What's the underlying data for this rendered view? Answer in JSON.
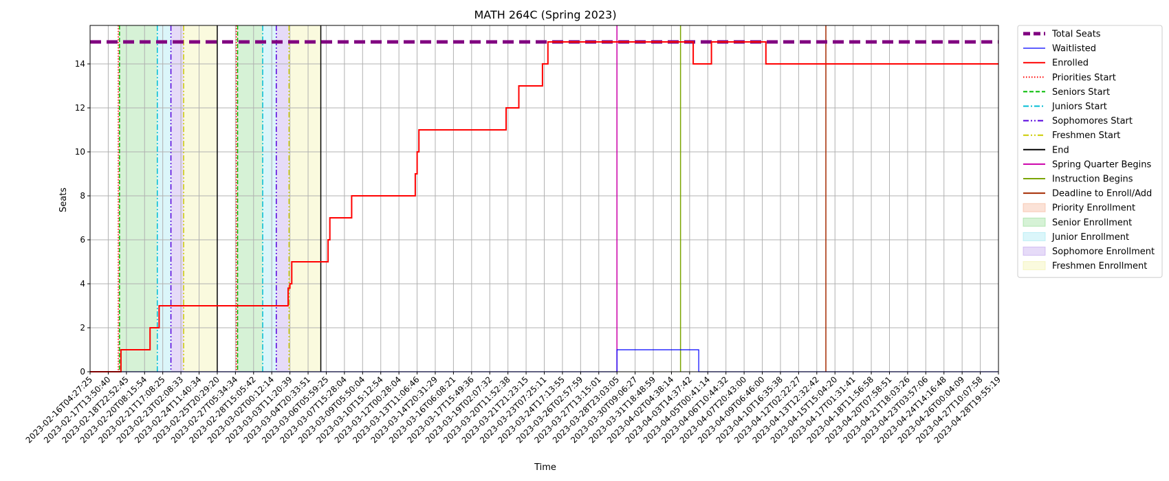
{
  "chart_data": {
    "type": "line",
    "title": "MATH 264C (Spring 2023)",
    "xlabel": "Time",
    "ylabel": "Seats",
    "xlim": [
      "2023-02-16T04:27:25",
      "2023-04-28T19:55:19"
    ],
    "ylim": [
      0,
      15.75
    ],
    "yticks": [
      0,
      2,
      4,
      6,
      8,
      10,
      12,
      14
    ],
    "xticks": [
      "2023-02-16T04:27:25",
      "2023-02-17T13:50:40",
      "2023-02-18T22:52:45",
      "2023-02-20T08:15:54",
      "2023-02-21T17:08:25",
      "2023-02-23T02:08:33",
      "2023-02-24T11:40:34",
      "2023-02-25T20:29:20",
      "2023-02-27T05:34:34",
      "2023-02-28T15:05:42",
      "2023-03-02T00:12:14",
      "2023-03-03T11:20:39",
      "2023-03-04T20:33:51",
      "2023-03-06T05:59:25",
      "2023-03-07T15:28:04",
      "2023-03-09T05:50:04",
      "2023-03-10T15:12:54",
      "2023-03-12T00:28:04",
      "2023-03-13T11:06:46",
      "2023-03-14T20:31:29",
      "2023-03-16T06:08:21",
      "2023-03-17T15:49:36",
      "2023-03-19T02:07:32",
      "2023-03-20T11:52:38",
      "2023-03-21T21:23:15",
      "2023-03-23T07:25:11",
      "2023-03-24T17:13:55",
      "2023-03-26T02:57:59",
      "2023-03-27T13:15:01",
      "2023-03-28T23:03:05",
      "2023-03-30T09:06:27",
      "2023-03-31T18:48:59",
      "2023-04-02T04:38:14",
      "2023-04-03T14:37:42",
      "2023-04-05T00:41:14",
      "2023-04-06T10:44:32",
      "2023-04-07T20:43:00",
      "2023-04-09T06:46:00",
      "2023-04-10T16:35:38",
      "2023-04-12T02:22:27",
      "2023-04-13T12:32:42",
      "2023-04-15T15:04:20",
      "2023-04-17T01:31:41",
      "2023-04-18T11:56:58",
      "2023-04-20T07:58:51",
      "2023-04-21T18:03:26",
      "2023-04-23T03:57:06",
      "2023-04-24T14:16:48",
      "2023-04-26T00:04:09",
      "2023-04-27T10:07:58",
      "2023-04-28T19:55:19"
    ],
    "grid": true,
    "legend_position": "outside-right",
    "series": [
      {
        "name": "Total Seats",
        "color": "#800080",
        "style": "dashed-thick",
        "points": [
          [
            0,
            15
          ],
          [
            50,
            15
          ]
        ]
      },
      {
        "name": "Waitlisted",
        "color": "#0000ff",
        "style": "solid-thin",
        "points": [
          [
            0,
            0
          ],
          [
            29,
            0
          ],
          [
            29,
            1
          ],
          [
            33.5,
            1
          ],
          [
            33.5,
            0
          ],
          [
            50,
            0
          ]
        ]
      },
      {
        "name": "Enrolled",
        "color": "#ff0000",
        "style": "solid",
        "points": [
          [
            0,
            0
          ],
          [
            1.7,
            0
          ],
          [
            1.7,
            1
          ],
          [
            3.3,
            1
          ],
          [
            3.3,
            2
          ],
          [
            3.8,
            2
          ],
          [
            3.8,
            3
          ],
          [
            10.9,
            3
          ],
          [
            10.9,
            3.8
          ],
          [
            11.0,
            3.8
          ],
          [
            11.0,
            4
          ],
          [
            11.1,
            4
          ],
          [
            11.1,
            5
          ],
          [
            13.1,
            5
          ],
          [
            13.1,
            6
          ],
          [
            13.2,
            6
          ],
          [
            13.2,
            7
          ],
          [
            14.4,
            7
          ],
          [
            14.4,
            8
          ],
          [
            17.9,
            8
          ],
          [
            17.9,
            9
          ],
          [
            18.0,
            9
          ],
          [
            18.0,
            10
          ],
          [
            18.1,
            10
          ],
          [
            18.1,
            11
          ],
          [
            22.9,
            11
          ],
          [
            22.9,
            12
          ],
          [
            23.6,
            12
          ],
          [
            23.6,
            13
          ],
          [
            24.9,
            13
          ],
          [
            24.9,
            14
          ],
          [
            25.2,
            14
          ],
          [
            25.2,
            15
          ],
          [
            33.2,
            15
          ],
          [
            33.2,
            14
          ],
          [
            34.2,
            14
          ],
          [
            34.2,
            15
          ],
          [
            37.2,
            15
          ],
          [
            37.2,
            14
          ],
          [
            50,
            14
          ]
        ]
      }
    ],
    "event_lines": [
      {
        "name": "Priorities Start",
        "color": "#ff0000",
        "style": "dotted",
        "x": [
          1.55,
          8.05
        ]
      },
      {
        "name": "Seniors Start",
        "color": "#00bb00",
        "style": "dashed",
        "x": [
          1.62,
          8.12
        ]
      },
      {
        "name": "Juniors Start",
        "color": "#00bcd4",
        "style": "dashdot",
        "x": [
          3.7,
          9.5
        ]
      },
      {
        "name": "Sophomores Start",
        "color": "#5500dd",
        "style": "dashdotdot",
        "x": [
          4.45,
          10.25
        ]
      },
      {
        "name": "Freshmen Start",
        "color": "#cccc00",
        "style": "dashdotdot",
        "x": [
          5.15,
          10.95
        ]
      },
      {
        "name": "End",
        "color": "#000000",
        "style": "solid",
        "x": [
          7.0,
          12.7
        ]
      },
      {
        "name": "Spring Quarter Begins",
        "color": "#cc00aa",
        "style": "solid",
        "x": [
          29.0
        ]
      },
      {
        "name": "Instruction Begins",
        "color": "#7aa500",
        "style": "solid",
        "x": [
          32.5
        ]
      },
      {
        "name": "Deadline to Enroll/Add",
        "color": "#a52a00",
        "style": "solid",
        "x": [
          40.5
        ]
      }
    ],
    "regions": [
      {
        "name": "Priority Enrollment",
        "color": "#f4a582",
        "spans": [
          [
            1.55,
            1.62
          ],
          [
            8.05,
            8.12
          ]
        ]
      },
      {
        "name": "Senior Enrollment",
        "color": "#7fd67f",
        "spans": [
          [
            1.62,
            3.7
          ],
          [
            8.12,
            9.5
          ]
        ]
      },
      {
        "name": "Junior Enrollment",
        "color": "#8fe3ee",
        "spans": [
          [
            3.7,
            4.45
          ],
          [
            9.5,
            10.25
          ]
        ]
      },
      {
        "name": "Sophomore Enrollment",
        "color": "#b28fe8",
        "spans": [
          [
            4.45,
            5.15
          ],
          [
            10.25,
            10.95
          ]
        ]
      },
      {
        "name": "Freshmen Enrollment",
        "color": "#eeee99",
        "spans": [
          [
            5.15,
            7.0
          ],
          [
            10.95,
            12.7
          ]
        ]
      }
    ]
  }
}
